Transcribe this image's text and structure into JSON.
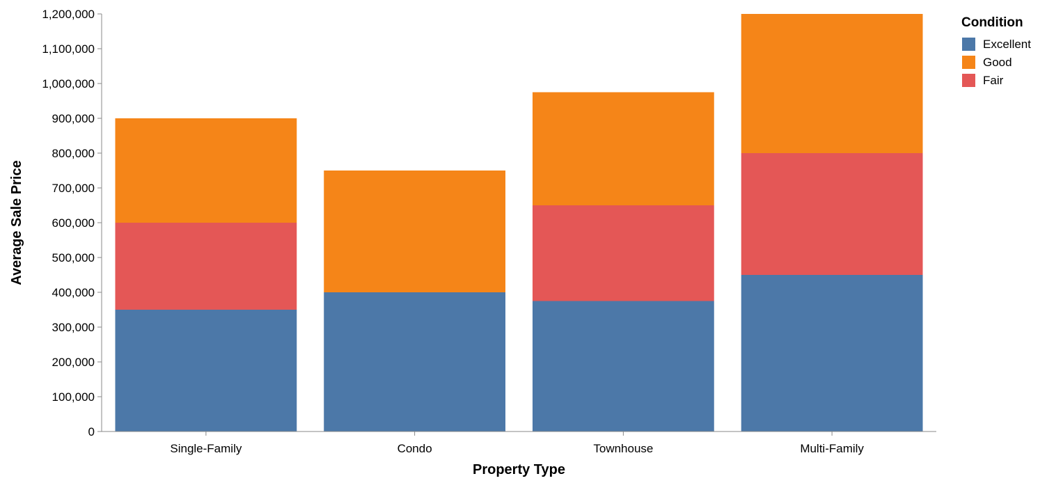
{
  "chart_data": {
    "type": "bar",
    "stacked": true,
    "categories": [
      "Single-Family",
      "Condo",
      "Townhouse",
      "Multi-Family"
    ],
    "series": [
      {
        "name": "Excellent",
        "color": "#4c78a8",
        "values": [
          350000,
          400000,
          375000,
          450000
        ]
      },
      {
        "name": "Fair",
        "color": "#e45756",
        "values": [
          250000,
          0,
          275000,
          350000
        ]
      },
      {
        "name": "Good",
        "color": "#f58518",
        "values": [
          300000,
          350000,
          325000,
          400000
        ]
      }
    ],
    "xlabel": "Property Type",
    "ylabel": "Average Sale Price",
    "ylim": [
      0,
      1200000
    ],
    "yticks": [
      0,
      100000,
      200000,
      300000,
      400000,
      500000,
      600000,
      700000,
      800000,
      900000,
      1000000,
      1100000,
      1200000
    ],
    "ytick_labels": [
      "0",
      "100,000",
      "200,000",
      "300,000",
      "400,000",
      "500,000",
      "600,000",
      "700,000",
      "800,000",
      "900,000",
      "1,000,000",
      "1,100,000",
      "1,200,000"
    ],
    "grid": false,
    "legend": {
      "title": "Condition",
      "position": "top-right",
      "items": [
        {
          "name": "Excellent",
          "color": "#4c78a8"
        },
        {
          "name": "Good",
          "color": "#f58518"
        },
        {
          "name": "Fair",
          "color": "#e45756"
        }
      ]
    }
  }
}
